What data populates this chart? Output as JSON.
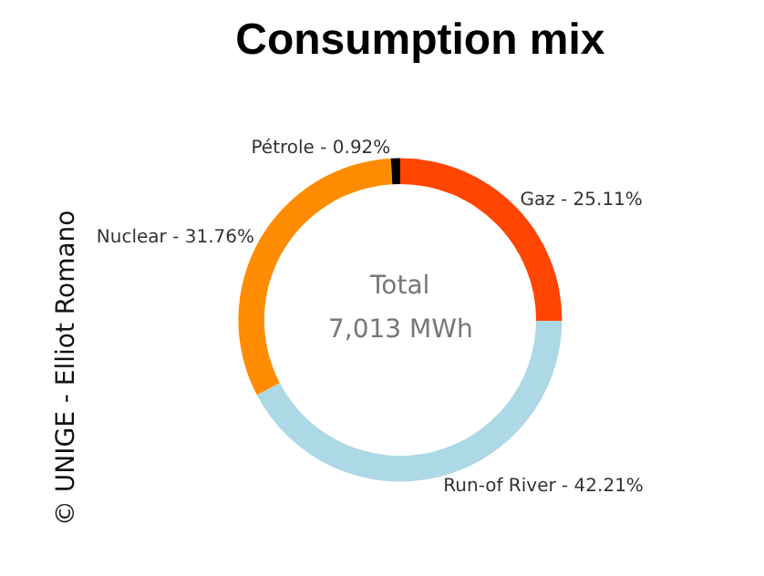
{
  "chart_data": {
    "type": "donut",
    "title": "Consumption mix",
    "categories": [
      "Gaz -",
      "Run-of River -",
      "Nuclear -",
      "Pétrole -"
    ],
    "values": [
      25.11,
      42.21,
      31.76,
      0.92
    ],
    "colors": [
      "#ff4500",
      "#add8e6",
      "#ff8c00",
      "#000000"
    ],
    "value_labels": [
      "25.11%",
      "42.21%",
      "31.76%",
      "0.92%"
    ],
    "annotations": [
      "Total",
      "7,013 MWh",
      "© UNIGE - Elliot Romano"
    ],
    "legend": false
  }
}
